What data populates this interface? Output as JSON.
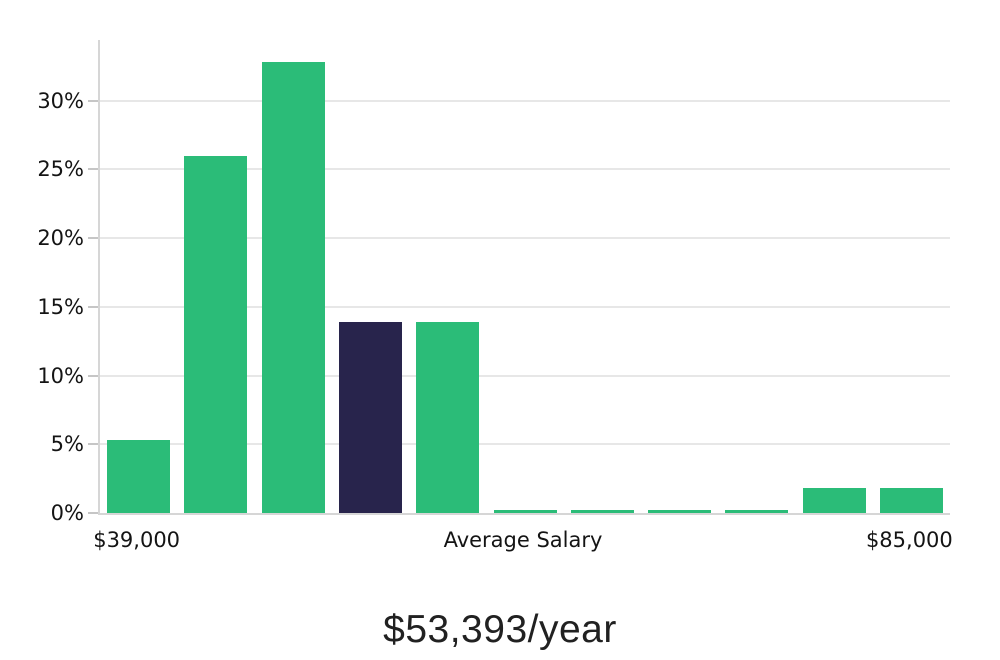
{
  "chart_data": {
    "type": "bar",
    "title": "$53,393/year",
    "values": [
      5.3,
      26.0,
      32.8,
      13.9,
      13.9,
      0.2,
      0.2,
      0.2,
      0.2,
      1.8,
      1.8
    ],
    "highlight_index": 3,
    "y_ticks": [
      {
        "label": "0%",
        "value": 0
      },
      {
        "label": "5%",
        "value": 5
      },
      {
        "label": "10%",
        "value": 10
      },
      {
        "label": "15%",
        "value": 15
      },
      {
        "label": "20%",
        "value": 20
      },
      {
        "label": "25%",
        "value": 25
      },
      {
        "label": "30%",
        "value": 30
      }
    ],
    "ylim": [
      0,
      34.4
    ],
    "x_tick_labels": [
      {
        "text": "$39,000",
        "anchor": "bar",
        "index": 0
      },
      {
        "text": "Average Salary",
        "anchor": "plot-center"
      },
      {
        "text": "$85,000",
        "anchor": "bar",
        "index": 10
      }
    ],
    "xlabel": "",
    "ylabel": "",
    "grid": true,
    "legend": false,
    "colors": {
      "bar": "#2bbc78",
      "highlight": "#28244c",
      "gridline": "#e7e7e7",
      "axis": "#d6d6d6",
      "tick": "#c6c6c6",
      "tick_text": "#141414",
      "title_text": "#212121",
      "background": "#ffffff"
    }
  }
}
